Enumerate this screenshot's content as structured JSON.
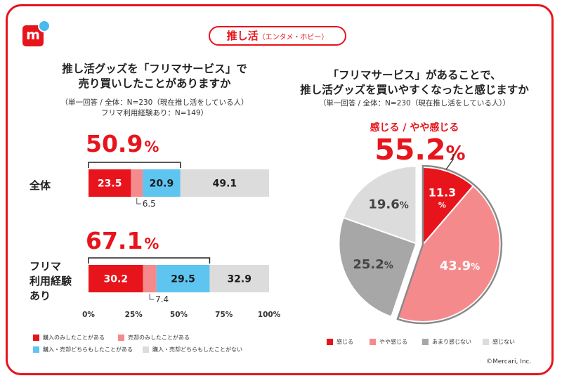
{
  "badge": {
    "main": "推し活",
    "sub": "（エンタメ・ホビー）"
  },
  "logo": {
    "letter": "m"
  },
  "left": {
    "title_lines": [
      "推し活グッズを「フリマサービス」で",
      "売り買いしたことがありますか"
    ],
    "note_lines": [
      "（単一回答 / 全体：N=230（現在推し活をしている人）",
      "フリマ利用経験あり：N=149）"
    ]
  },
  "right": {
    "title_lines": [
      "「フリマサービス」があることで、",
      "推し活グッズを買いやすくなったと感じますか"
    ],
    "note_lines": [
      "（単一回答 / 全体：N=230（現在推し活をしている人））"
    ]
  },
  "colors": {
    "red": "#e8141c",
    "pink": "#f58a8c",
    "blue": "#5ec4f0",
    "light_gray": "#dcdcdc",
    "dark_gray": "#a7a7a7"
  },
  "chart_data": [
    {
      "type": "bar",
      "orientation": "horizontal",
      "stacked": true,
      "categories": [
        "全体",
        "フリマ利用経験あり"
      ],
      "category_labels": [
        [
          "全体"
        ],
        [
          "フリマ",
          "利用経験",
          "あり"
        ]
      ],
      "series": [
        {
          "name": "購入のみしたことがある",
          "color": "#e8141c",
          "values": [
            23.5,
            30.2
          ]
        },
        {
          "name": "売却のみしたことがある",
          "color": "#f58a8c",
          "values": [
            6.5,
            7.4
          ]
        },
        {
          "name": "購入・売却どちらもしたことがある",
          "color": "#5ec4f0",
          "values": [
            20.9,
            29.5
          ]
        },
        {
          "name": "購入・売却どちらもしたことがない",
          "color": "#dcdcdc",
          "values": [
            49.1,
            32.9
          ]
        }
      ],
      "highlight_totals": [
        "50.9",
        "67.1"
      ],
      "xticks": [
        "0%",
        "25%",
        "50%",
        "75%",
        "100%"
      ],
      "xlim": [
        0,
        100
      ],
      "legend": "bottom"
    },
    {
      "type": "pie",
      "slices": [
        {
          "label": "感じる",
          "value": 11.3,
          "color": "#e8141c"
        },
        {
          "label": "やや感じる",
          "value": 43.9,
          "color": "#f58a8c"
        },
        {
          "label": "あまり感じない",
          "value": 25.2,
          "color": "#a7a7a7"
        },
        {
          "label": "感じない",
          "value": 19.6,
          "color": "#dcdcdc"
        }
      ],
      "highlight_caption": "感じる / やや感じる",
      "highlight_total": "55.2",
      "legend": "bottom"
    }
  ],
  "pct_sign": "%",
  "copyright": "©Mercari, Inc."
}
